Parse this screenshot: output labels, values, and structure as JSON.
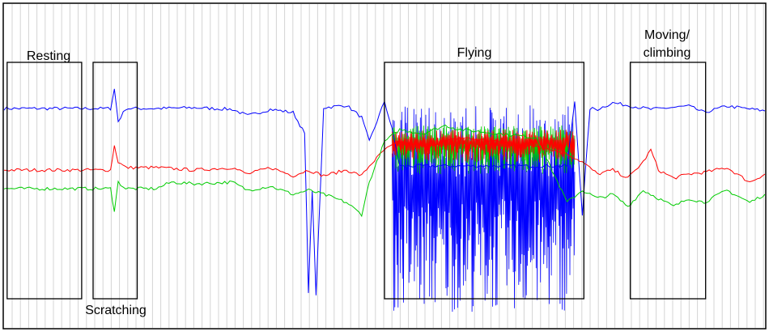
{
  "chart_data": {
    "type": "line",
    "title": "",
    "xlabel": "",
    "ylabel": "",
    "xlim": [
      0,
      100
    ],
    "ylim": [
      -2,
      2
    ],
    "grid": true,
    "legend": "none",
    "series": [
      {
        "color": "#0000ff",
        "x": [
          0,
          10,
          14,
          14.5,
          15,
          16,
          20,
          25,
          30,
          32,
          35,
          38,
          39.5,
          40,
          40.5,
          41,
          42,
          45,
          47,
          48,
          50,
          51,
          52,
          74,
          75,
          76,
          77,
          78,
          80,
          85,
          90,
          92,
          95,
          100
        ],
        "y": [
          0.71,
          0.71,
          0.71,
          0.95,
          0.55,
          0.71,
          0.71,
          0.72,
          0.7,
          0.62,
          0.7,
          0.66,
          0.4,
          -1.55,
          -0.3,
          -1.6,
          0.72,
          0.75,
          0.6,
          0.3,
          0.8,
          0.45,
          0.0,
          0.0,
          0.8,
          -0.6,
          0.71,
          0.7,
          0.78,
          0.7,
          0.74,
          0.66,
          0.74,
          0.68
        ]
      },
      {
        "color": "#ff0000",
        "x": [
          0,
          10,
          14,
          14.5,
          15,
          16,
          20,
          25,
          30,
          32,
          35,
          38,
          40,
          42,
          45,
          47,
          48,
          50,
          52,
          55,
          58,
          60,
          65,
          70,
          74,
          76,
          78,
          80,
          82,
          84,
          85,
          86,
          88,
          90,
          92,
          95,
          98,
          100
        ],
        "y": [
          -0.05,
          -0.05,
          -0.05,
          0.25,
          0.05,
          -0.02,
          -0.02,
          -0.05,
          -0.02,
          -0.1,
          -0.02,
          -0.12,
          -0.05,
          -0.12,
          -0.05,
          -0.12,
          0.0,
          0.2,
          0.3,
          0.25,
          0.3,
          0.35,
          0.3,
          0.25,
          0.15,
          0.05,
          -0.1,
          -0.05,
          -0.15,
          0.05,
          0.2,
          -0.05,
          -0.15,
          -0.1,
          -0.08,
          -0.02,
          -0.2,
          -0.1
        ]
      },
      {
        "color": "#00cc00",
        "x": [
          0,
          10,
          14,
          14.5,
          15,
          16,
          20,
          22,
          25,
          30,
          32,
          35,
          38,
          40,
          42,
          45,
          47,
          48,
          50,
          52,
          55,
          58,
          60,
          65,
          70,
          74,
          76,
          78,
          80,
          82,
          84,
          86,
          88,
          90,
          92,
          95,
          98,
          100
        ],
        "y": [
          -0.28,
          -0.28,
          -0.28,
          -0.55,
          -0.2,
          -0.28,
          -0.28,
          -0.2,
          -0.22,
          -0.2,
          -0.3,
          -0.25,
          -0.35,
          -0.3,
          -0.35,
          -0.45,
          -0.6,
          -0.2,
          0.3,
          0.45,
          0.4,
          0.5,
          0.45,
          0.4,
          0.35,
          -0.45,
          -0.3,
          -0.4,
          -0.35,
          -0.5,
          -0.3,
          -0.4,
          -0.5,
          -0.4,
          -0.45,
          -0.3,
          -0.45,
          -0.35
        ]
      }
    ],
    "bursts": [
      {
        "series": 0,
        "x_range": [
          51,
          75
        ],
        "y_range": [
          -1.8,
          0.75
        ]
      },
      {
        "series": 2,
        "x_range": [
          51,
          75
        ],
        "y_range": [
          -0.1,
          0.5
        ]
      },
      {
        "series": 1,
        "x_range": [
          51,
          75
        ],
        "y_range": [
          0.05,
          0.45
        ]
      }
    ],
    "annotations": [
      {
        "label": "Resting",
        "x_range": [
          0.4,
          10.2
        ],
        "y_range": [
          -2.0,
          1.7
        ]
      },
      {
        "label": "Scratching",
        "x_range": [
          11.7,
          17.5
        ],
        "y_range": [
          -2.0,
          1.7
        ]
      },
      {
        "label": "Flying",
        "x_range": [
          50.0,
          76.2
        ],
        "y_range": [
          -2.0,
          1.7
        ]
      },
      {
        "label": "Moving/\nclimbing",
        "x_range": [
          82.3,
          92.2
        ],
        "y_range": [
          -2.0,
          1.7
        ]
      }
    ],
    "label_text": {
      "resting": "Resting",
      "scratching": "Scratching",
      "flying": "Flying",
      "moving_line1": "Moving/",
      "moving_line2": "climbing"
    }
  }
}
